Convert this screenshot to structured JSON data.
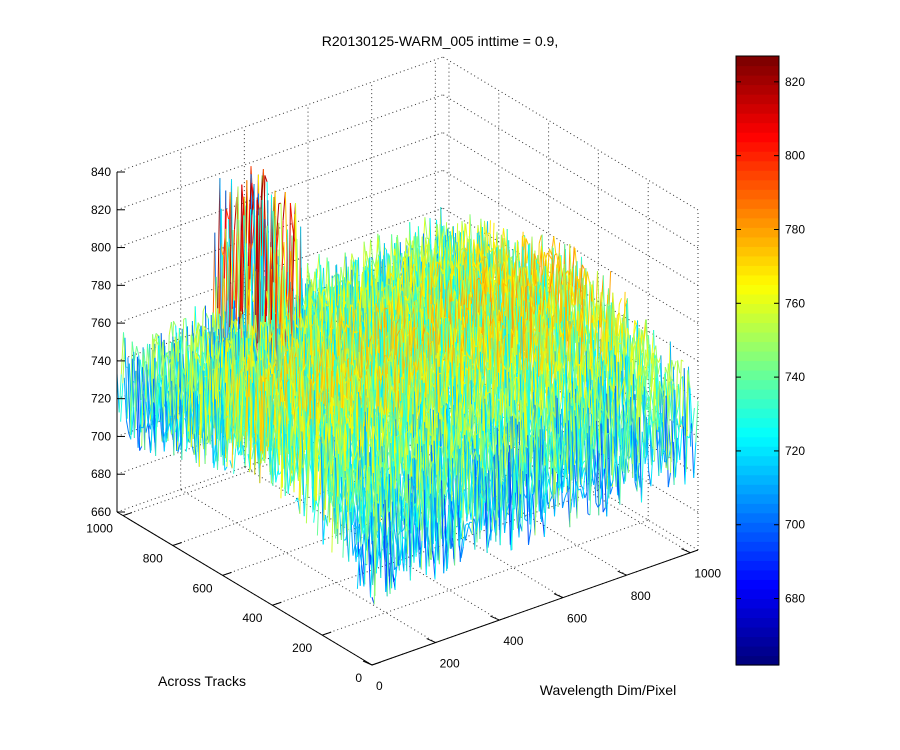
{
  "chart_data": {
    "type": "surface3d",
    "title": "R20130125-WARM_005 inttime = 0.9,",
    "xlabel": "Wavelength Dim/Pixel",
    "ylabel": "Across Tracks",
    "zlabel": "",
    "x_range": [
      0,
      1024
    ],
    "y_range": [
      0,
      1024
    ],
    "zlim": [
      660,
      840
    ],
    "x_ticks": [
      "0",
      "200",
      "400",
      "600",
      "800",
      "1000"
    ],
    "y_ticks": [
      "0",
      "200",
      "400",
      "600",
      "800",
      "1000"
    ],
    "z_ticks": [
      "660",
      "680",
      "700",
      "720",
      "740",
      "760",
      "780",
      "800",
      "820",
      "840"
    ],
    "colorbar": {
      "colormap": "jet",
      "range": [
        662,
        827
      ],
      "ticks": [
        "680",
        "700",
        "720",
        "740",
        "760",
        "780",
        "800",
        "820"
      ]
    },
    "surface_trend": {
      "description_values": "mean surface level by across-track (y) position sampled at wavelength 0..1000",
      "y_samples": [
        0,
        200,
        400,
        600,
        800,
        1000
      ],
      "mean_z_at_y": [
        722,
        740,
        752,
        748,
        738,
        728
      ],
      "noise_amplitude": 30,
      "spike_region_x": [
        300,
        420
      ],
      "spike_region_y": [
        900,
        1024
      ],
      "spike_max_z": 825
    }
  }
}
